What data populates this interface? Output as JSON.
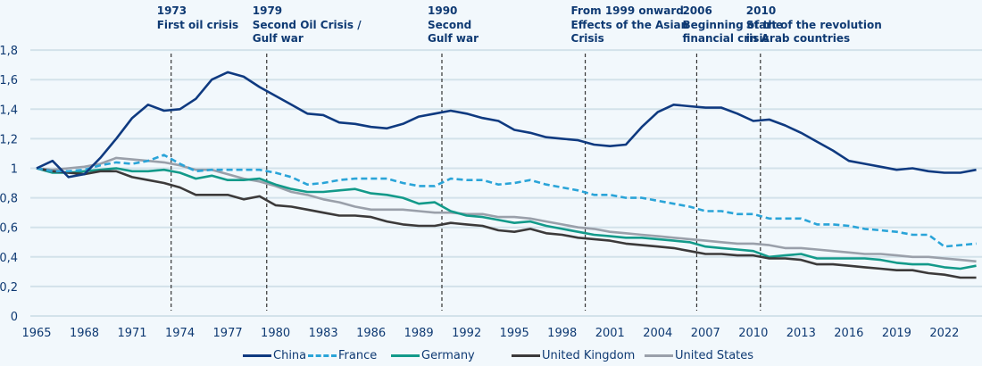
{
  "chart_data": {
    "type": "line",
    "title": "",
    "xlabel": "",
    "ylabel": "",
    "ylim": [
      0,
      1.8
    ],
    "yticks": [
      "0",
      "0,2",
      "0,4",
      "0,6",
      "0,8",
      "1",
      "1,2",
      "1,4",
      "1,6",
      "1,8"
    ],
    "xticks": [
      "1965",
      "1968",
      "1971",
      "1974",
      "1977",
      "1980",
      "1983",
      "1986",
      "1989",
      "1992",
      "1995",
      "1998",
      "2001",
      "2004",
      "2007",
      "2010",
      "2013",
      "2016",
      "2019",
      "2022"
    ],
    "grid": "horizontal",
    "legend_position": "bottom",
    "x": [
      1965,
      1966,
      1967,
      1968,
      1969,
      1970,
      1971,
      1972,
      1973,
      1974,
      1975,
      1976,
      1977,
      1978,
      1979,
      1980,
      1981,
      1982,
      1983,
      1984,
      1985,
      1986,
      1987,
      1988,
      1989,
      1990,
      1991,
      1992,
      1993,
      1994,
      1995,
      1996,
      1997,
      1998,
      1999,
      2000,
      2001,
      2002,
      2003,
      2004,
      2005,
      2006,
      2007,
      2008,
      2009,
      2010,
      2011,
      2012,
      2013,
      2014,
      2015,
      2016,
      2017,
      2018,
      2019,
      2020,
      2021,
      2022,
      2023,
      2024
    ],
    "series": [
      {
        "name": "China",
        "color": "#0f3a80",
        "dash": false,
        "values": [
          1.0,
          1.05,
          0.94,
          0.96,
          1.07,
          1.2,
          1.34,
          1.43,
          1.39,
          1.4,
          1.47,
          1.6,
          1.65,
          1.62,
          1.55,
          1.49,
          1.43,
          1.37,
          1.36,
          1.31,
          1.3,
          1.28,
          1.27,
          1.3,
          1.35,
          1.37,
          1.39,
          1.37,
          1.34,
          1.32,
          1.26,
          1.24,
          1.21,
          1.2,
          1.19,
          1.16,
          1.15,
          1.16,
          1.28,
          1.38,
          1.43,
          1.42,
          1.41,
          1.41,
          1.37,
          1.32,
          1.33,
          1.29,
          1.24,
          1.18,
          1.12,
          1.05,
          1.03,
          1.01,
          0.99,
          1.0,
          0.98,
          0.97,
          0.97,
          0.99
        ]
      },
      {
        "name": "France",
        "color": "#2aa4d8",
        "dash": true,
        "values": [
          1.0,
          0.98,
          0.98,
          0.99,
          1.02,
          1.04,
          1.03,
          1.05,
          1.09,
          1.03,
          0.98,
          0.99,
          0.99,
          0.99,
          0.99,
          0.97,
          0.94,
          0.89,
          0.9,
          0.92,
          0.93,
          0.93,
          0.93,
          0.9,
          0.88,
          0.88,
          0.93,
          0.92,
          0.92,
          0.89,
          0.9,
          0.92,
          0.89,
          0.87,
          0.85,
          0.82,
          0.82,
          0.8,
          0.8,
          0.78,
          0.76,
          0.74,
          0.71,
          0.71,
          0.69,
          0.69,
          0.66,
          0.66,
          0.66,
          0.62,
          0.62,
          0.61,
          0.59,
          0.58,
          0.57,
          0.55,
          0.55,
          0.47,
          0.48,
          0.49
        ]
      },
      {
        "name": "Germany",
        "color": "#139a8a",
        "dash": false,
        "values": [
          1.0,
          0.97,
          0.97,
          0.98,
          0.99,
          1.0,
          0.98,
          0.98,
          0.99,
          0.97,
          0.93,
          0.95,
          0.92,
          0.92,
          0.93,
          0.89,
          0.86,
          0.84,
          0.84,
          0.85,
          0.86,
          0.83,
          0.82,
          0.8,
          0.76,
          0.77,
          0.71,
          0.68,
          0.67,
          0.65,
          0.63,
          0.64,
          0.61,
          0.59,
          0.57,
          0.55,
          0.54,
          0.53,
          0.53,
          0.52,
          0.51,
          0.5,
          0.47,
          0.46,
          0.45,
          0.44,
          0.4,
          0.41,
          0.42,
          0.39,
          0.39,
          0.39,
          0.39,
          0.38,
          0.36,
          0.35,
          0.35,
          0.33,
          0.32,
          0.34
        ]
      },
      {
        "name": "United Kingdom",
        "color": "#3c3a3a",
        "dash": false,
        "values": [
          1.0,
          0.98,
          0.97,
          0.96,
          0.98,
          0.98,
          0.94,
          0.92,
          0.9,
          0.87,
          0.82,
          0.82,
          0.82,
          0.79,
          0.81,
          0.75,
          0.74,
          0.72,
          0.7,
          0.68,
          0.68,
          0.67,
          0.64,
          0.62,
          0.61,
          0.61,
          0.63,
          0.62,
          0.61,
          0.58,
          0.57,
          0.59,
          0.56,
          0.55,
          0.53,
          0.52,
          0.51,
          0.49,
          0.48,
          0.47,
          0.46,
          0.44,
          0.42,
          0.42,
          0.41,
          0.41,
          0.39,
          0.39,
          0.38,
          0.35,
          0.35,
          0.34,
          0.33,
          0.32,
          0.31,
          0.31,
          0.29,
          0.28,
          0.26,
          0.26
        ]
      },
      {
        "name": "United States",
        "color": "#9aa0aa",
        "dash": false,
        "values": [
          1.0,
          0.99,
          1.0,
          1.01,
          1.03,
          1.07,
          1.06,
          1.05,
          1.04,
          1.02,
          0.99,
          0.99,
          0.96,
          0.93,
          0.91,
          0.88,
          0.84,
          0.82,
          0.79,
          0.77,
          0.74,
          0.72,
          0.72,
          0.72,
          0.71,
          0.7,
          0.7,
          0.69,
          0.69,
          0.67,
          0.67,
          0.66,
          0.64,
          0.62,
          0.6,
          0.59,
          0.57,
          0.56,
          0.55,
          0.54,
          0.53,
          0.52,
          0.51,
          0.5,
          0.49,
          0.49,
          0.48,
          0.46,
          0.46,
          0.45,
          0.44,
          0.43,
          0.42,
          0.42,
          0.41,
          0.4,
          0.4,
          0.39,
          0.38,
          0.37
        ]
      }
    ],
    "annotations": [
      {
        "year": 1973,
        "lines": [
          "1973",
          "First oil crisis"
        ]
      },
      {
        "year": 1979,
        "lines": [
          "1979",
          "Second Oil Crisis /",
          "Gulf war"
        ]
      },
      {
        "year": 1990,
        "lines": [
          "1990",
          "Second",
          "Gulf war"
        ]
      },
      {
        "year": 1999,
        "lines": [
          "From 1999 onward",
          "Effects of the Asian",
          "Crisis"
        ]
      },
      {
        "year": 2006,
        "lines": [
          "2006",
          "Beginning of the",
          "financial crisis"
        ]
      },
      {
        "year": 2010,
        "lines": [
          "2010",
          "Start of the revolution",
          "in Arab countries"
        ]
      }
    ]
  },
  "colors": {
    "background": "#f2f8fc",
    "grid": "#d3e2ea",
    "text": "#0f3a73",
    "event_line": "#333333"
  }
}
